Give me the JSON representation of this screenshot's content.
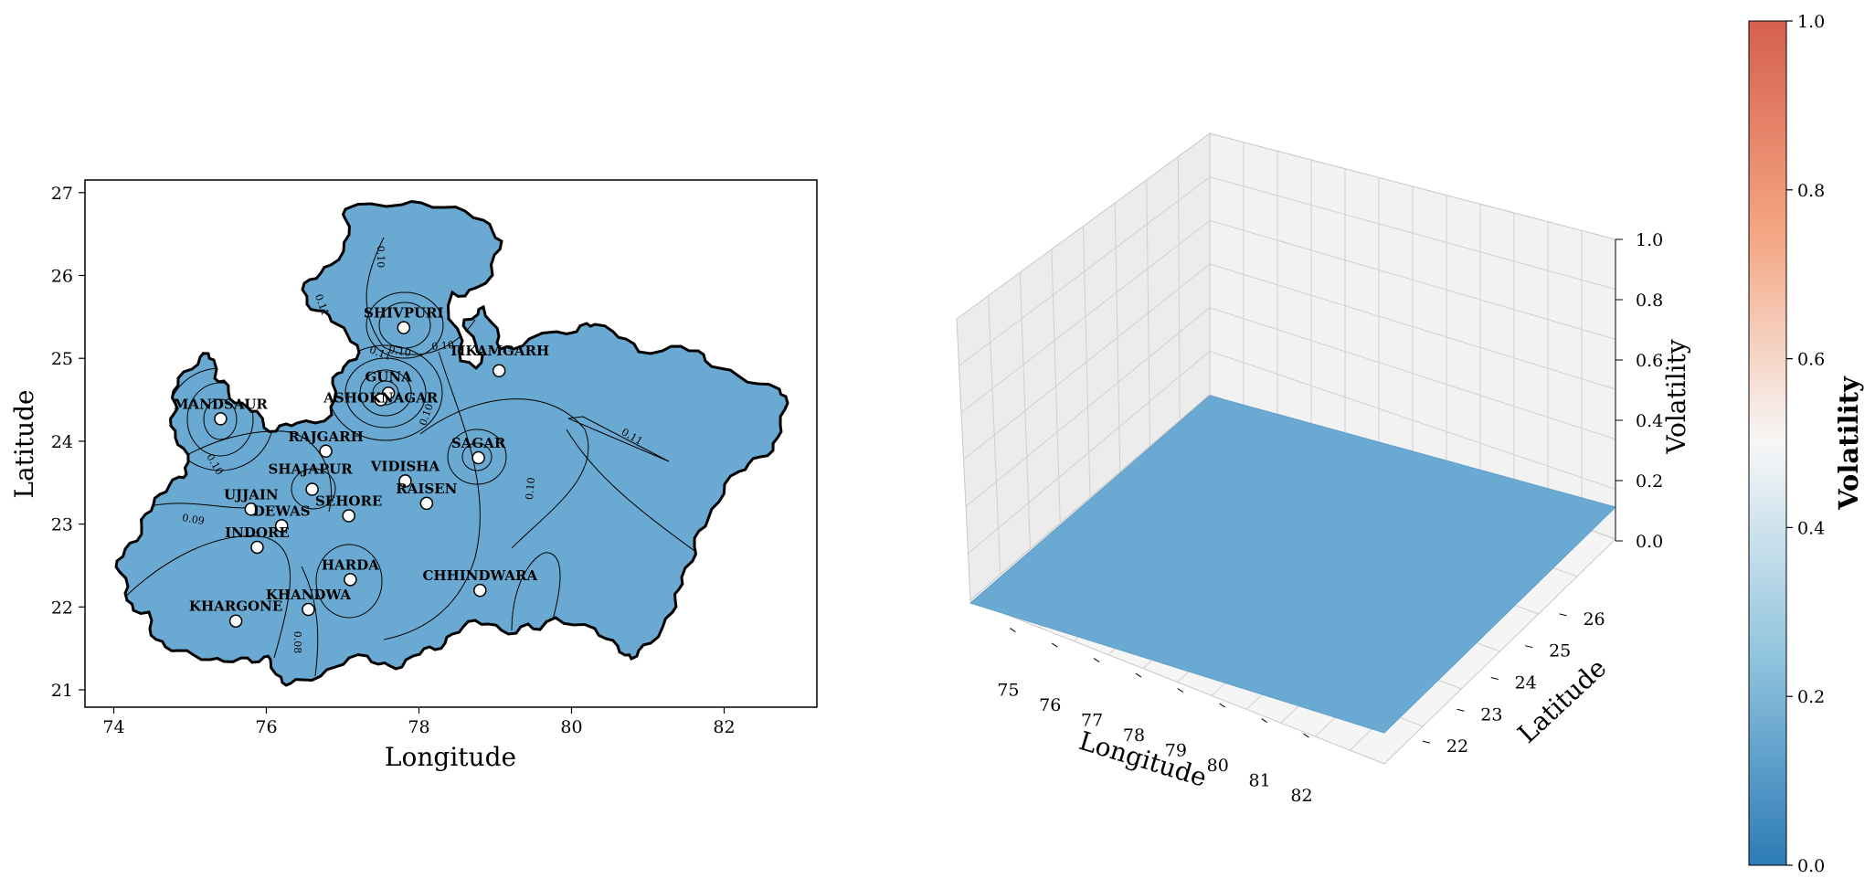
{
  "chart_data": [
    {
      "type": "contour_map",
      "xlabel": "Longitude",
      "ylabel": "Latitude",
      "xlim": [
        73.6,
        83.2
      ],
      "ylim": [
        20.8,
        27.2
      ],
      "xticks": [
        74,
        76,
        78,
        80,
        82
      ],
      "yticks": [
        21,
        22,
        23,
        24,
        25,
        26,
        27
      ],
      "fill_color": "#6aaad2",
      "contour_levels": [
        0.08,
        0.09,
        0.1,
        0.11,
        0.12,
        0.13
      ],
      "contour_labels": [
        "0.10",
        "0.11",
        "0.10",
        "0.10",
        "0.11",
        "0.10",
        "0.09",
        "0.10",
        "0.11",
        "0.10",
        "0.08"
      ],
      "cities": [
        {
          "name": "SHIVPURI",
          "lon": 77.8,
          "lat": 25.37
        },
        {
          "name": "TIKAMGARH",
          "lon": 79.05,
          "lat": 24.85
        },
        {
          "name": "GUNA",
          "lon": 77.6,
          "lat": 24.58
        },
        {
          "name": "ASHOKNAGAR",
          "lon": 77.5,
          "lat": 24.5
        },
        {
          "name": "MANDSAUR",
          "lon": 75.4,
          "lat": 24.27
        },
        {
          "name": "RAJGARH",
          "lon": 76.78,
          "lat": 23.88
        },
        {
          "name": "SAGAR",
          "lon": 78.78,
          "lat": 23.8
        },
        {
          "name": "VIDISHA",
          "lon": 77.82,
          "lat": 23.52
        },
        {
          "name": "SHAJAPUR",
          "lon": 76.6,
          "lat": 23.42
        },
        {
          "name": "RAISEN",
          "lon": 78.1,
          "lat": 23.25
        },
        {
          "name": "SEHORE",
          "lon": 77.08,
          "lat": 23.1
        },
        {
          "name": "UJJAIN",
          "lon": 75.8,
          "lat": 23.18
        },
        {
          "name": "DEWAS",
          "lon": 76.2,
          "lat": 22.98
        },
        {
          "name": "INDORE",
          "lon": 75.88,
          "lat": 22.72
        },
        {
          "name": "HARDA",
          "lon": 77.1,
          "lat": 22.33
        },
        {
          "name": "CHHINDWARA",
          "lon": 78.8,
          "lat": 22.2
        },
        {
          "name": "KHANDWA",
          "lon": 76.55,
          "lat": 21.97
        },
        {
          "name": "KHARGONE",
          "lon": 75.6,
          "lat": 21.83
        }
      ]
    },
    {
      "type": "surface3d",
      "xlabel": "Longitude",
      "ylabel": "Latitude",
      "zlabel": "Volatility",
      "xticks": [
        75,
        76,
        77,
        78,
        79,
        80,
        81,
        82
      ],
      "yticks": [
        22,
        23,
        24,
        25,
        26
      ],
      "zticks": [
        "0.0",
        "0.2",
        "0.4",
        "0.6",
        "0.8",
        "1.0"
      ],
      "zlim": [
        0,
        1
      ],
      "surface_value": 0.1,
      "surface_color": "#6aaad2"
    },
    {
      "type": "colorbar",
      "label": "Volatility",
      "ticks": [
        "0.0",
        "0.2",
        "0.4",
        "0.6",
        "0.8",
        "1.0"
      ],
      "colormap": [
        "#2c7bb6",
        "#92c5de",
        "#f7f7f7",
        "#f4a582",
        "#d6604d"
      ]
    }
  ]
}
